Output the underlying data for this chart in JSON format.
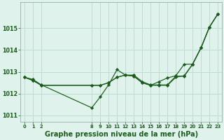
{
  "background_color": "#dff2ec",
  "grid_color": "#b8ddd4",
  "line_color": "#1a5c1a",
  "marker_color": "#1a5c1a",
  "xlabel": "Graphe pression niveau de la mer (hPa)",
  "xlabel_fontsize": 7,
  "xlim": [
    -0.5,
    23.5
  ],
  "ylim": [
    1010.7,
    1016.2
  ],
  "yticks": [
    1011,
    1012,
    1013,
    1014,
    1015
  ],
  "xtick_positions": [
    0,
    1,
    2,
    8,
    9,
    10,
    11,
    12,
    13,
    14,
    15,
    16,
    17,
    18,
    19,
    20,
    21,
    22,
    23
  ],
  "xtick_labels": [
    "0",
    "1",
    "2",
    "8",
    "9",
    "10",
    "11",
    "12",
    "13",
    "14",
    "15",
    "16",
    "17",
    "18",
    "19",
    "20",
    "21",
    "22",
    "23"
  ],
  "series": [
    {
      "x": [
        0,
        1,
        2,
        8,
        9,
        10,
        11,
        12,
        13,
        14,
        15,
        16,
        17,
        18,
        19,
        20,
        21,
        22,
        23
      ],
      "y": [
        1012.75,
        1012.65,
        1012.4,
        1011.35,
        1011.85,
        1012.4,
        1013.1,
        1012.85,
        1012.85,
        1012.55,
        1012.4,
        1012.4,
        1012.4,
        1012.8,
        1012.8,
        1013.35,
        1014.1,
        1015.05,
        1015.65
      ]
    },
    {
      "x": [
        0,
        1,
        2,
        8,
        9,
        10,
        11,
        12,
        13,
        14,
        15,
        16,
        17,
        18,
        19,
        20,
        21,
        22,
        23
      ],
      "y": [
        1012.75,
        1012.6,
        1012.38,
        1012.38,
        1012.38,
        1012.5,
        1012.75,
        1012.85,
        1012.8,
        1012.5,
        1012.38,
        1012.38,
        1012.38,
        1012.75,
        1012.82,
        1013.35,
        1014.1,
        1015.05,
        1015.65
      ]
    },
    {
      "x": [
        0,
        1,
        2,
        8,
        9,
        10,
        11,
        12,
        13,
        14,
        15,
        16,
        17,
        18,
        19,
        20,
        21,
        22,
        23
      ],
      "y": [
        1012.75,
        1012.6,
        1012.38,
        1012.38,
        1012.38,
        1012.5,
        1012.75,
        1012.85,
        1012.8,
        1012.5,
        1012.38,
        1012.55,
        1012.72,
        1012.82,
        1013.35,
        1013.35,
        1014.1,
        1015.05,
        1015.65
      ]
    }
  ]
}
